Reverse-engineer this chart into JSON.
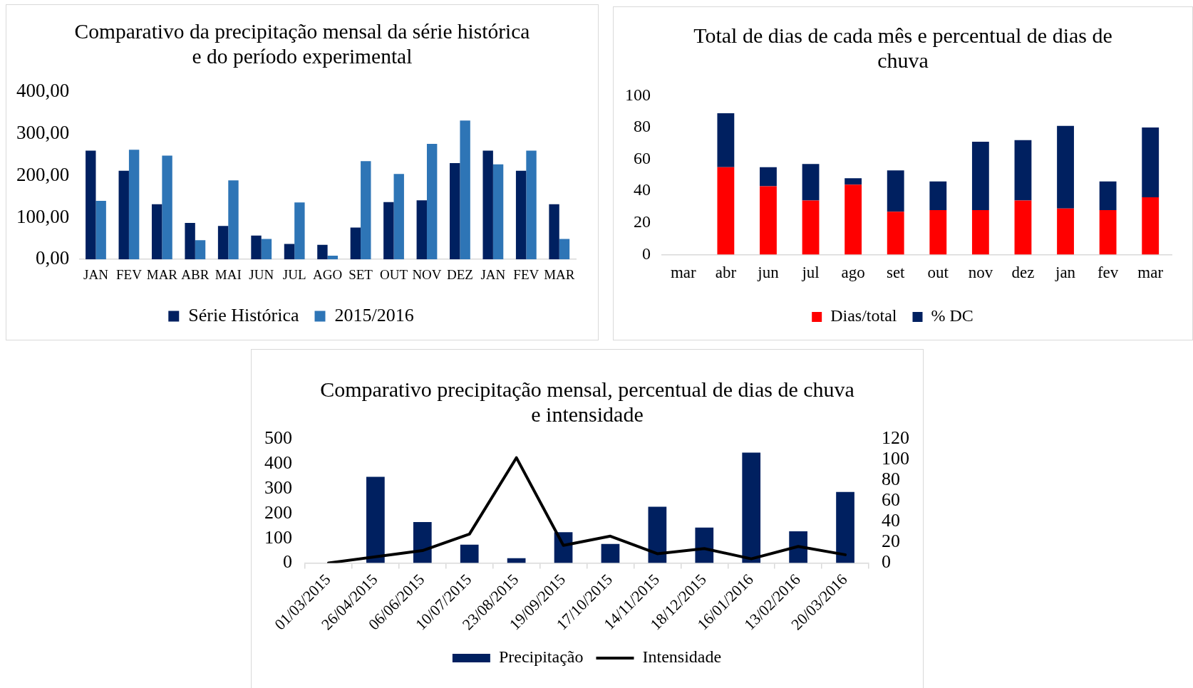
{
  "chart_data": [
    {
      "type": "bar",
      "title": "Comparativo da precipitação mensal da série histórica e do período experimental",
      "categories": [
        "JAN",
        "FEV",
        "MAR",
        "ABR",
        "MAI",
        "JUN",
        "JUL",
        "AGO",
        "SET",
        "OUT",
        "NOV",
        "DEZ",
        "JAN",
        "FEV",
        "MAR"
      ],
      "series": [
        {
          "name": "Série Histórica",
          "color": "#002060",
          "values": [
            260,
            212,
            132,
            87,
            80,
            57,
            37,
            35,
            76,
            137,
            141,
            230,
            260,
            212,
            132
          ]
        },
        {
          "name": "2015/2016",
          "color": "#2e75b6",
          "values": [
            140,
            262,
            248,
            46,
            189,
            49,
            136,
            9,
            235,
            204,
            276,
            332,
            227,
            260,
            49
          ]
        }
      ],
      "ylim": [
        0,
        400
      ],
      "yticks": [
        {
          "value": 0,
          "label": "0,00"
        },
        {
          "value": 100,
          "label": "100,00"
        },
        {
          "value": 200,
          "label": "200,00"
        },
        {
          "value": 300,
          "label": "300,00"
        },
        {
          "value": 400,
          "label": "400,00"
        }
      ],
      "legend": "bottom"
    },
    {
      "type": "bar",
      "stacked": true,
      "title": "Total de dias de cada mês e percentual de dias de chuva",
      "categories": [
        "mar",
        "abr",
        "jun",
        "jul",
        "ago",
        "set",
        "out",
        "nov",
        "dez",
        "jan",
        "fev",
        "mar"
      ],
      "series": [
        {
          "name": "Dias/total",
          "color": "#ff0000",
          "values": [
            null,
            55,
            43,
            34,
            44,
            27,
            28,
            28,
            34,
            29,
            28,
            36
          ]
        },
        {
          "name": "% DC",
          "color": "#002060",
          "values": [
            null,
            34,
            12,
            23,
            4,
            26,
            18,
            43,
            38,
            52,
            18,
            44
          ]
        }
      ],
      "ylim": [
        0,
        100
      ],
      "yticks": [
        0,
        20,
        40,
        60,
        80,
        100
      ],
      "legend": "bottom"
    },
    {
      "type": "bar",
      "title": "Comparativo precipitação mensal, percentual de dias de chuva e intensidade",
      "categories": [
        "01/03/2015",
        "26/04/2015",
        "06/06/2015",
        "10/07/2015",
        "23/08/2015",
        "19/09/2015",
        "17/10/2015",
        "14/11/2015",
        "18/12/2015",
        "16/01/2016",
        "13/02/2016",
        "20/03/2016"
      ],
      "series": [
        {
          "name": "Precipitação",
          "color": "#002060",
          "values": [
            null,
            348,
            165,
            74,
            19,
            124,
            77,
            227,
            143,
            446,
            128,
            287
          ]
        },
        {
          "name": "Intensidade",
          "type": "line",
          "axis": "y2",
          "color": "#000000",
          "values": [
            0,
            6,
            12,
            28,
            102,
            17,
            26,
            9,
            14,
            4,
            16,
            8
          ]
        }
      ],
      "ylim": [
        0,
        500
      ],
      "yticks": [
        0,
        100,
        200,
        300,
        400,
        500
      ],
      "y2lim": [
        0,
        120
      ],
      "y2ticks": [
        0,
        20,
        40,
        60,
        80,
        100,
        120
      ],
      "marker": "none",
      "legend": "bottom"
    }
  ]
}
